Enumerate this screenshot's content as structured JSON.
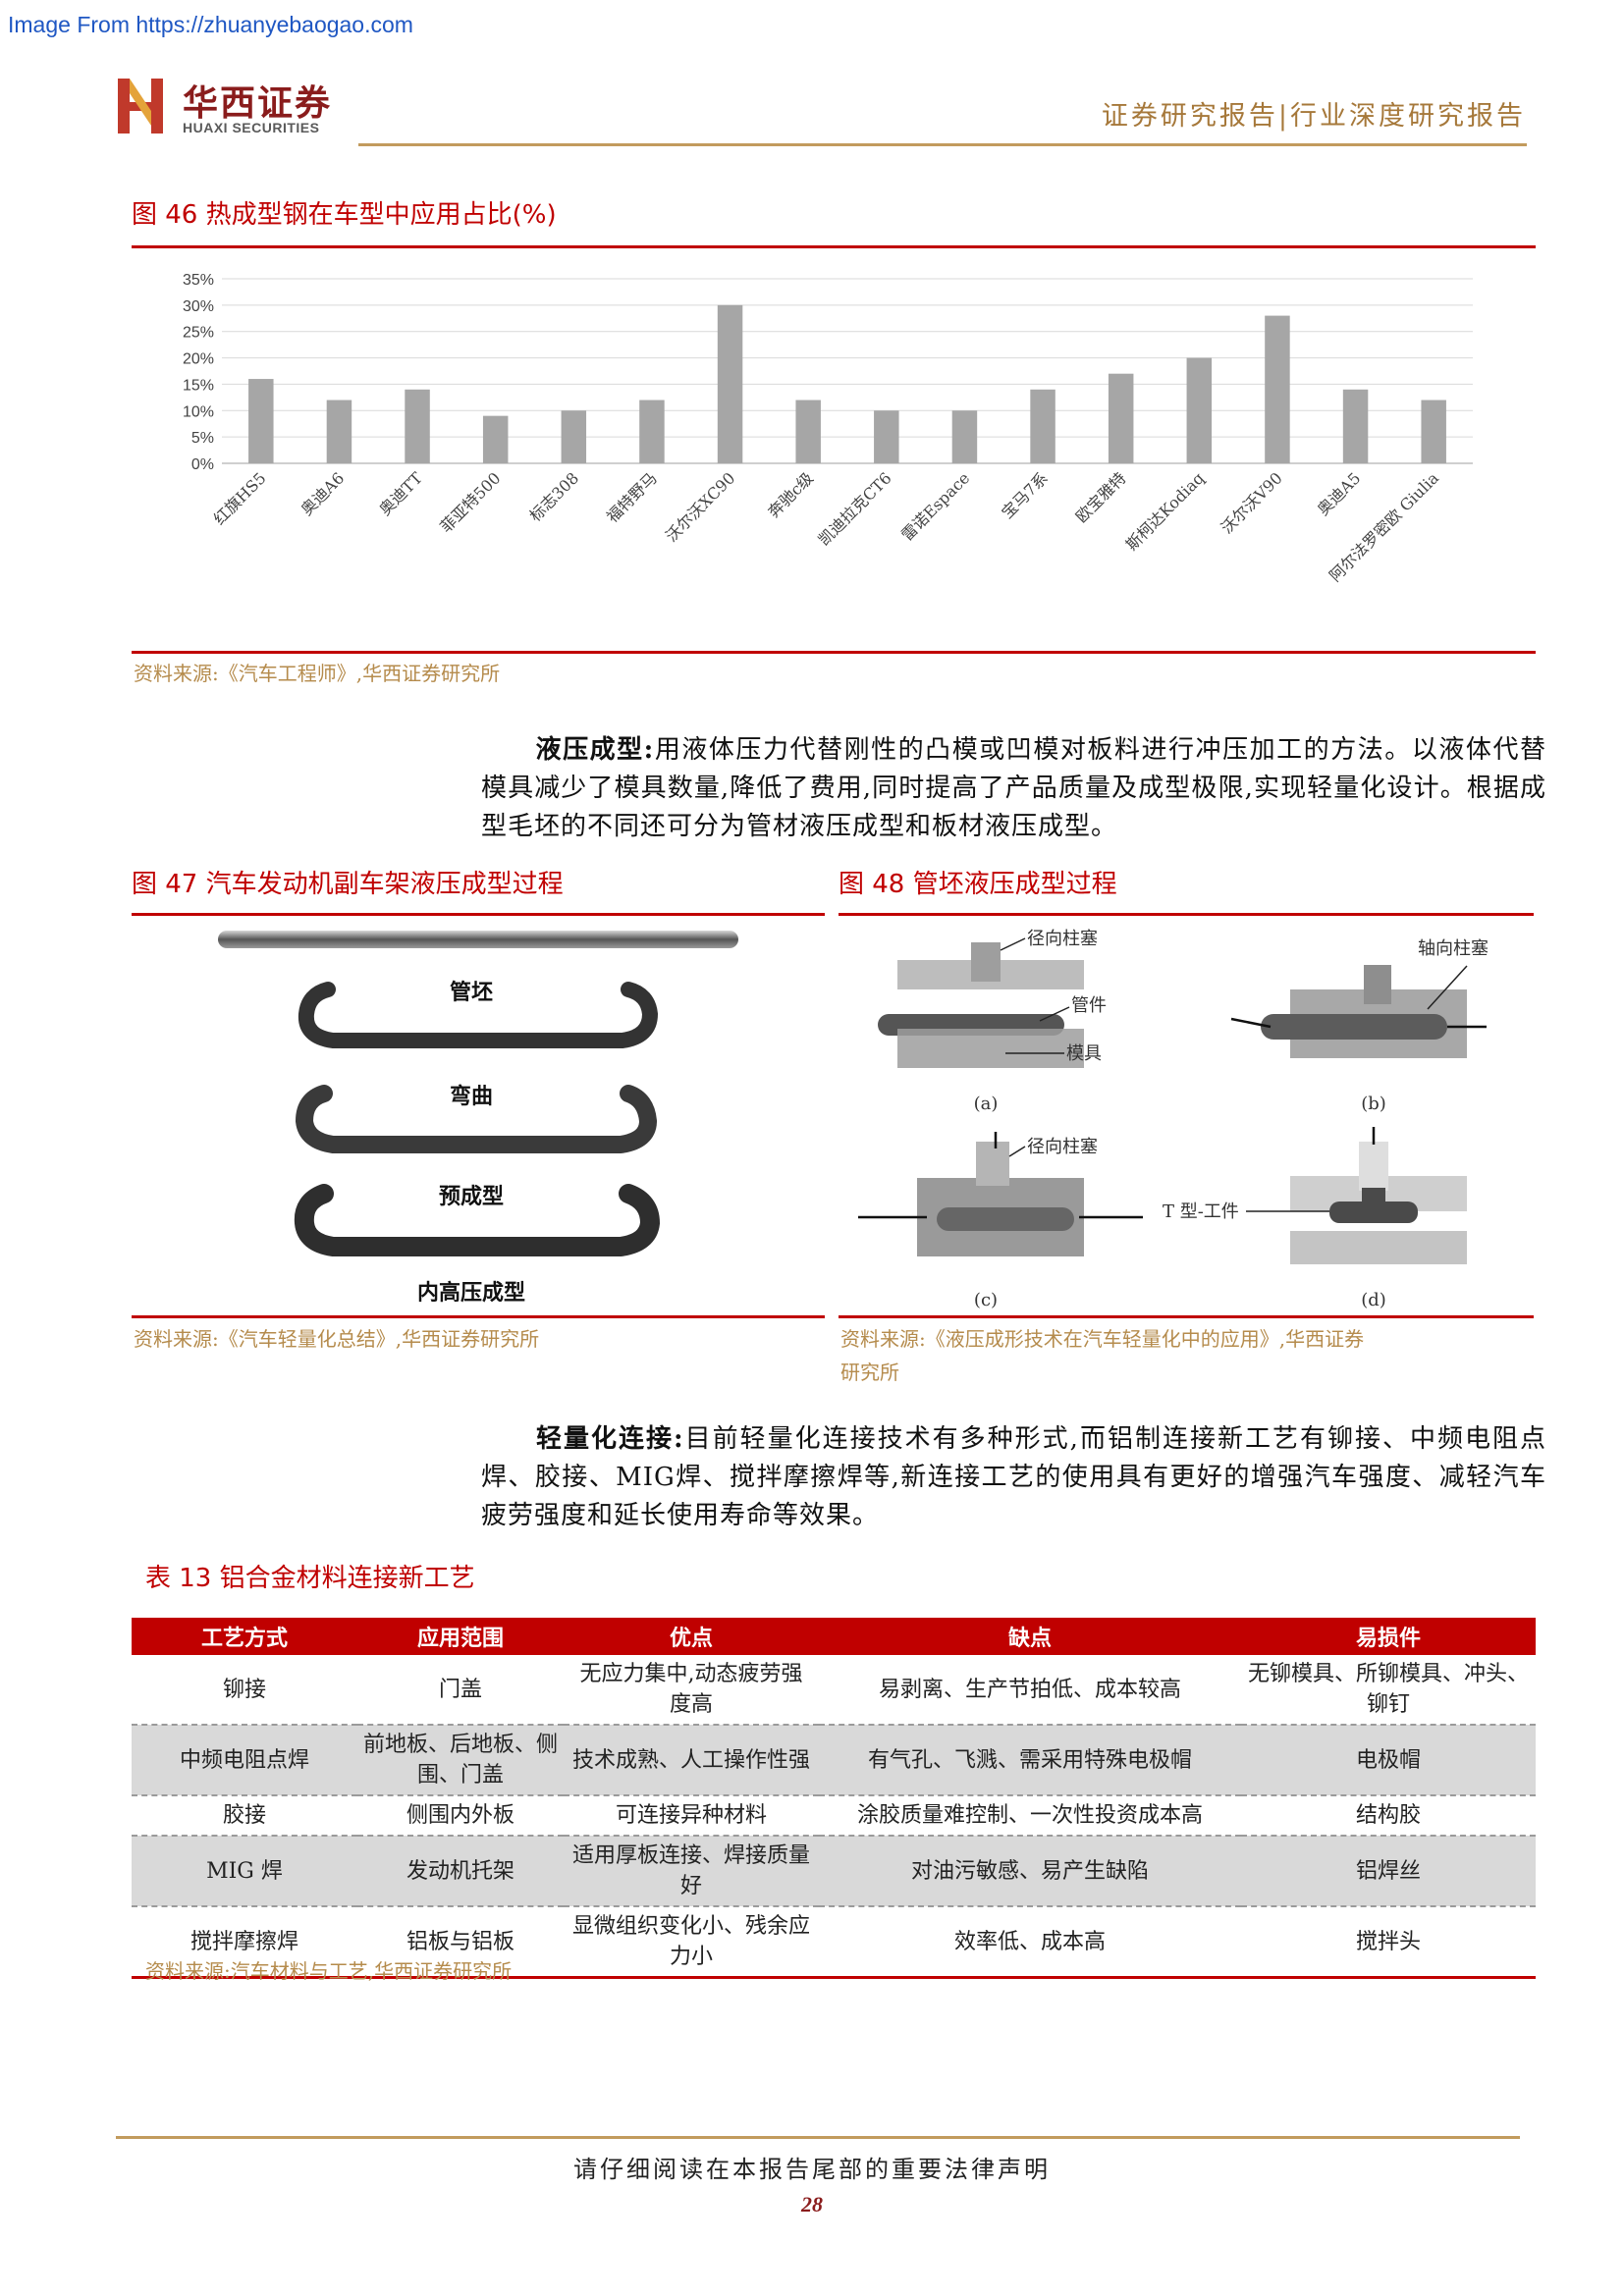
{
  "watermark": "Image From https://zhuanyebaogao.com",
  "header": {
    "logo_cn": "华西证券",
    "logo_en": "HUAXI SECURITIES",
    "report_type": "证券研究报告|行业深度研究报告"
  },
  "fig46": {
    "title": "图 46 热成型钢在车型中应用占比(%)",
    "source": "资料来源:《汽车工程师》,华西证券研究所"
  },
  "chart_data": {
    "type": "bar",
    "title": "",
    "xlabel": "",
    "ylabel": "",
    "ylim": [
      0,
      35
    ],
    "yticks": [
      "0%",
      "5%",
      "10%",
      "15%",
      "20%",
      "25%",
      "30%",
      "35%"
    ],
    "grid": true,
    "bar_color": "#a6a6a6",
    "categories": [
      "红旗HS5",
      "奥迪A6",
      "奥迪TT",
      "菲亚特500",
      "标志308",
      "福特野马",
      "沃尔沃XC90",
      "奔驰c级",
      "凯迪拉克CT6",
      "雷诺Espace",
      "宝马7系",
      "欧宝雅特",
      "斯柯达Kodiaq",
      "沃尔沃V90",
      "奥迪A5",
      "阿尔法罗密欧 Giulia"
    ],
    "values": [
      16,
      12,
      14,
      9,
      10,
      12,
      30,
      12,
      10,
      10,
      14,
      17,
      20,
      28,
      14,
      12
    ]
  },
  "para1": {
    "term": "液压成型:",
    "text": "用液体压力代替刚性的凸模或凹模对板料进行冲压加工的方法。以液体代替模具减少了模具数量,降低了费用,同时提高了产品质量及成型极限,实现轻量化设计。根据成型毛坯的不同还可分为管材液压成型和板材液压成型。"
  },
  "fig47": {
    "title": "图 47 汽车发动机副车架液压成型过程",
    "labels": [
      "管坯",
      "弯曲",
      "预成型",
      "内高压成型"
    ],
    "source": "资料来源:《汽车轻量化总结》,华西证券研究所"
  },
  "fig48": {
    "title": "图 48 管坯液压成型过程",
    "labels": {
      "radial_punch_a": "径向柱塞",
      "tube": "管件",
      "die": "模具",
      "axial_punch": "轴向柱塞",
      "radial_punch_c": "径向柱塞",
      "t_part": "T 型-工件",
      "a": "(a)",
      "b": "(b)",
      "c": "(c)",
      "d": "(d)"
    },
    "source_line1": "资料来源:《液压成形技术在汽车轻量化中的应用》,华西证券",
    "source_line2": "研究所"
  },
  "para2": {
    "term": "轻量化连接:",
    "text": "目前轻量化连接技术有多种形式,而铝制连接新工艺有铆接、中频电阻点焊、胶接、MIG焊、搅拌摩擦焊等,新连接工艺的使用具有更好的增强汽车强度、减轻汽车疲劳强度和延长使用寿命等效果。"
  },
  "table13": {
    "title": "表 13 铝合金材料连接新工艺",
    "headers": [
      "工艺方式",
      "应用范围",
      "优点",
      "缺点",
      "易损件"
    ],
    "rows": [
      [
        "铆接",
        "门盖",
        "无应力集中,动态疲劳强度高",
        "易剥离、生产节拍低、成本较高",
        "无铆模具、所铆模具、冲头、铆钉"
      ],
      [
        "中频电阻点焊",
        "前地板、后地板、侧围、门盖",
        "技术成熟、人工操作性强",
        "有气孔、飞溅、需采用特殊电极帽",
        "电极帽"
      ],
      [
        "胶接",
        "侧围内外板",
        "可连接异种材料",
        "涂胶质量难控制、一次性投资成本高",
        "结构胶"
      ],
      [
        "MIG 焊",
        "发动机托架",
        "适用厚板连接、焊接质量好",
        "对油污敏感、易产生缺陷",
        "铝焊丝"
      ],
      [
        "搅拌摩擦焊",
        "铝板与铝板",
        "显微组织变化小、残余应力小",
        "效率低、成本高",
        "搅拌头"
      ]
    ],
    "source": "资料来源:汽车材料与工艺,华西证券研究所"
  },
  "footer": {
    "notice": "请仔细阅读在本报告尾部的重要法律声明",
    "page": "28"
  }
}
